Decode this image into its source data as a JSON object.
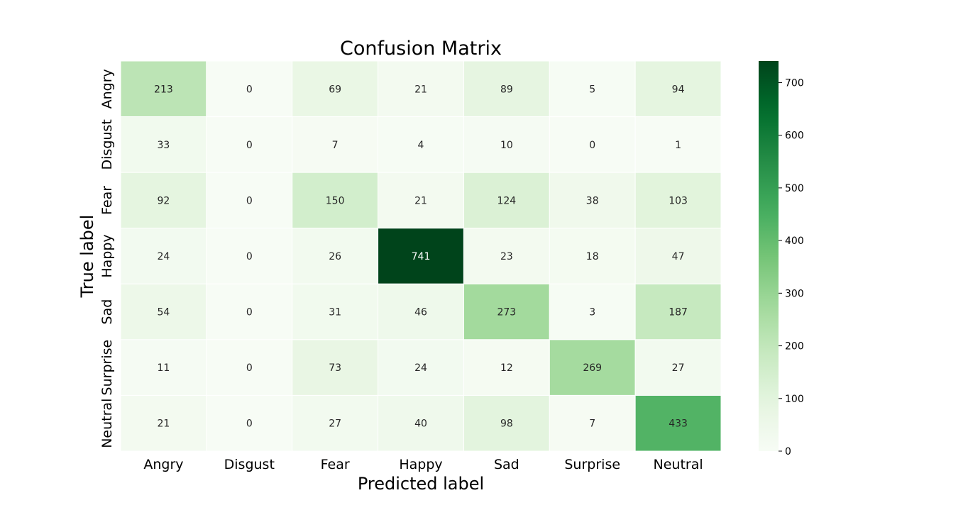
{
  "chart_data": {
    "type": "heatmap",
    "title": "Confusion Matrix",
    "xlabel": "Predicted label",
    "ylabel": "True label",
    "x_categories": [
      "Angry",
      "Disgust",
      "Fear",
      "Happy",
      "Sad",
      "Surprise",
      "Neutral"
    ],
    "y_categories": [
      "Angry",
      "Disgust",
      "Fear",
      "Happy",
      "Sad",
      "Surprise",
      "Neutral"
    ],
    "values": [
      [
        213,
        0,
        69,
        21,
        89,
        5,
        94
      ],
      [
        33,
        0,
        7,
        4,
        10,
        0,
        1
      ],
      [
        92,
        0,
        150,
        21,
        124,
        38,
        103
      ],
      [
        24,
        0,
        26,
        741,
        23,
        18,
        47
      ],
      [
        54,
        0,
        31,
        46,
        273,
        3,
        187
      ],
      [
        11,
        0,
        73,
        24,
        12,
        269,
        27
      ],
      [
        21,
        0,
        27,
        40,
        98,
        7,
        433
      ]
    ],
    "colorbar": {
      "min": 0,
      "max": 741,
      "ticks": [
        0,
        100,
        200,
        300,
        400,
        500,
        600,
        700
      ],
      "colormap": "Greens"
    },
    "grid": false,
    "legend": "colorbar-right"
  }
}
